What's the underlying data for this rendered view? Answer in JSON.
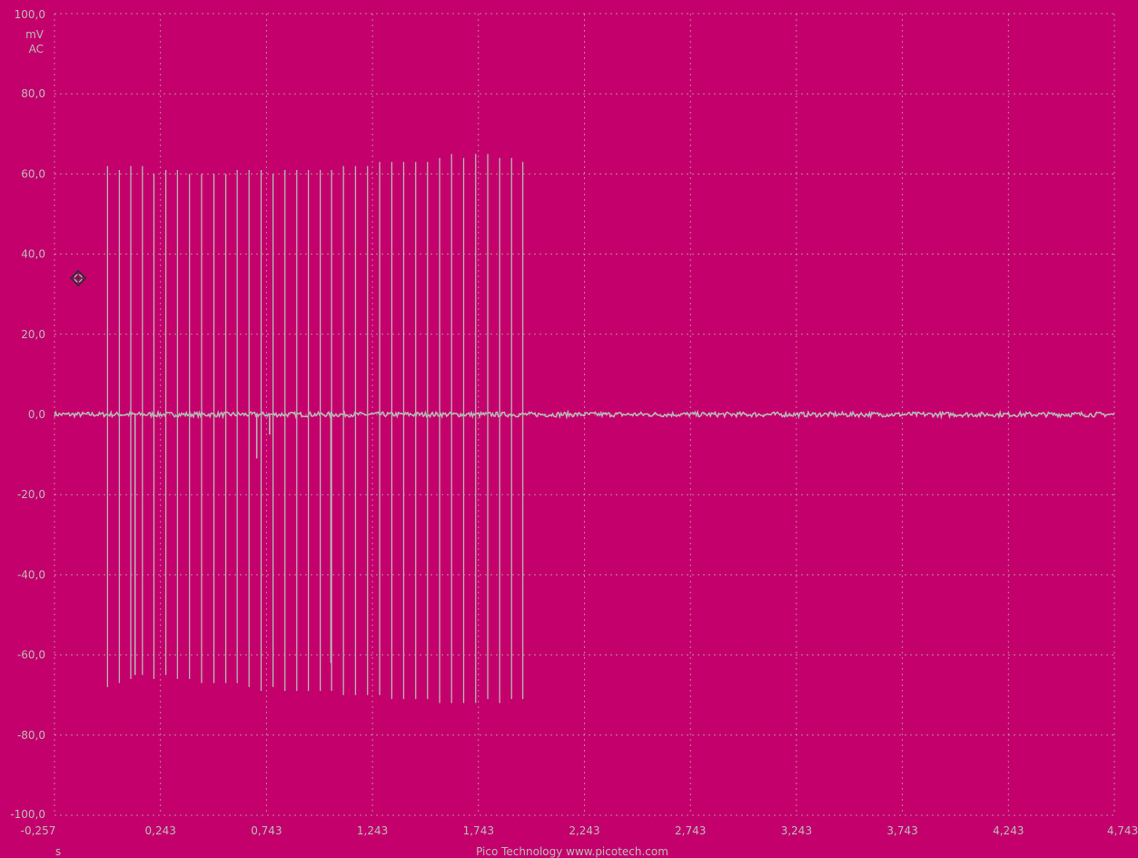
{
  "colors": {
    "background": "#c4006c",
    "trace": "#b5b5b5",
    "grid": "#b0b0b0",
    "text": "#b9b9b9",
    "marker": "#3a2a3a"
  },
  "y_axis": {
    "unit_value": "mV",
    "unit_coupling": "AC"
  },
  "x_axis": {
    "unit": "s"
  },
  "footer": {
    "credit": "Pico Technology  www.picotech.com"
  },
  "marker": {
    "name": "trigger-marker-icon",
    "x": -0.145,
    "y": 34.0
  },
  "chart_data": {
    "type": "line",
    "xlim": [
      -0.257,
      4.743
    ],
    "ylim": [
      -100,
      100
    ],
    "x_ticks": [
      -0.257,
      0.243,
      0.743,
      1.243,
      1.743,
      2.243,
      2.743,
      3.243,
      3.743,
      4.243,
      4.743
    ],
    "x_tick_labels": [
      "-0,257",
      "0,243",
      "0,743",
      "1,243",
      "1,743",
      "2,243",
      "2,743",
      "3,243",
      "3,743",
      "4,243",
      "4,743"
    ],
    "y_ticks": [
      100,
      80,
      60,
      40,
      20,
      0,
      -20,
      -40,
      -60,
      -80,
      -100
    ],
    "y_tick_labels": [
      "100,0",
      "80,0",
      "60,0",
      "40,0",
      "20,0",
      "0,0",
      "-20,0",
      "-40,0",
      "-60,0",
      "-80,0",
      "-100,0"
    ],
    "grid": true,
    "baseline": 0,
    "noise_amplitude": 0.6,
    "spikes": [
      {
        "x": -0.007,
        "max": 62,
        "min": -68
      },
      {
        "x": 0.049,
        "max": 61,
        "min": -67
      },
      {
        "x": 0.103,
        "max": 62,
        "min": -66
      },
      {
        "x": 0.158,
        "max": 62,
        "min": -65
      },
      {
        "x": 0.212,
        "max": 60,
        "min": -66
      },
      {
        "x": 0.268,
        "max": 61,
        "min": -65
      },
      {
        "x": 0.323,
        "max": 61,
        "min": -66
      },
      {
        "x": 0.38,
        "max": 60,
        "min": -66
      },
      {
        "x": 0.437,
        "max": 60,
        "min": -67
      },
      {
        "x": 0.495,
        "max": 60,
        "min": -67
      },
      {
        "x": 0.551,
        "max": 60,
        "min": -67
      },
      {
        "x": 0.605,
        "max": 61,
        "min": -67
      },
      {
        "x": 0.661,
        "max": 61,
        "min": -68
      },
      {
        "x": 0.718,
        "max": 61,
        "min": -69
      },
      {
        "x": 0.774,
        "max": 60,
        "min": -68
      },
      {
        "x": 0.83,
        "max": 61,
        "min": -69
      },
      {
        "x": 0.886,
        "max": 61,
        "min": -69
      },
      {
        "x": 0.941,
        "max": 61,
        "min": -69
      },
      {
        "x": 0.997,
        "max": 61,
        "min": -69
      },
      {
        "x": 1.05,
        "max": 61,
        "min": -69
      },
      {
        "x": 1.106,
        "max": 62,
        "min": -70
      },
      {
        "x": 1.163,
        "max": 62,
        "min": -70
      },
      {
        "x": 1.22,
        "max": 62,
        "min": -70
      },
      {
        "x": 1.277,
        "max": 63,
        "min": -70
      },
      {
        "x": 1.334,
        "max": 63,
        "min": -71
      },
      {
        "x": 1.39,
        "max": 63,
        "min": -71
      },
      {
        "x": 1.447,
        "max": 63,
        "min": -71
      },
      {
        "x": 1.503,
        "max": 63,
        "min": -71
      },
      {
        "x": 1.56,
        "max": 64,
        "min": -72
      },
      {
        "x": 1.616,
        "max": 65,
        "min": -72
      },
      {
        "x": 1.673,
        "max": 64,
        "min": -72
      },
      {
        "x": 1.73,
        "max": 65,
        "min": -72
      },
      {
        "x": 1.787,
        "max": 65,
        "min": -71
      },
      {
        "x": 1.843,
        "max": 64,
        "min": -72
      },
      {
        "x": 1.899,
        "max": 64,
        "min": -71
      },
      {
        "x": 1.952,
        "max": 63,
        "min": -71
      }
    ],
    "minor_dips": [
      {
        "x": 0.123,
        "min": -65
      },
      {
        "x": 0.697,
        "min": -11
      },
      {
        "x": 0.758,
        "min": -5
      },
      {
        "x": 1.047,
        "min": -62
      }
    ]
  }
}
